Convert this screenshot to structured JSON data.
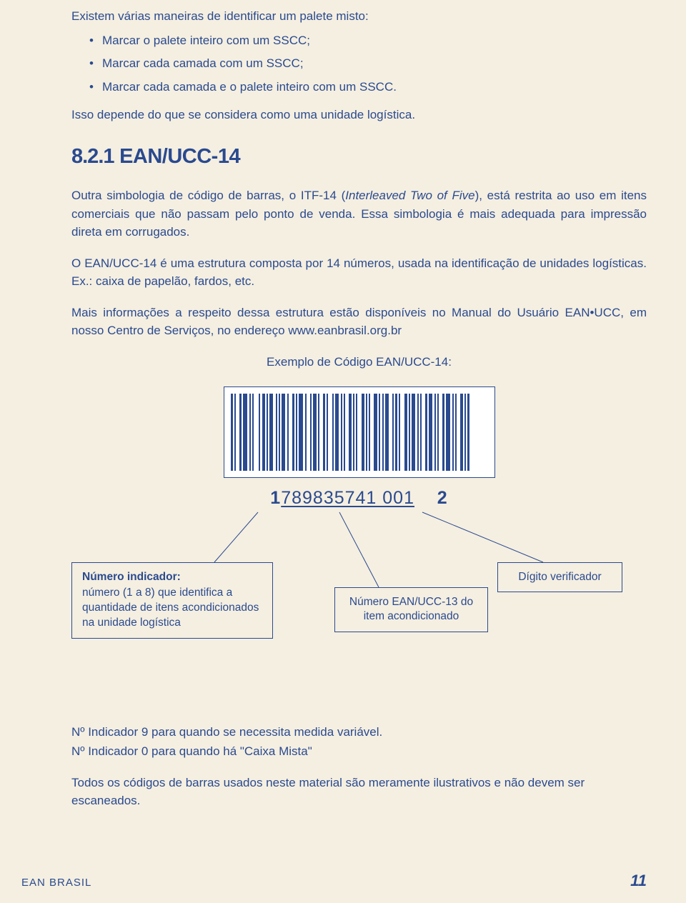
{
  "intro": "Existem várias maneiras de identificar um palete misto:",
  "bullets": [
    "Marcar o palete inteiro com um SSCC;",
    "Marcar cada camada com um SSCC;",
    "Marcar cada camada e o palete inteiro com um SSCC."
  ],
  "depends": "Isso depende do que se considera como uma unidade logística.",
  "section": {
    "num": "8.2.1",
    "title": "EAN/UCC-14"
  },
  "para1_a": "Outra simbologia de código de barras, o ITF-14 (",
  "para1_i": "Interleaved Two of Five",
  "para1_b": "), está restrita ao uso em itens comerciais que não passam pelo ponto de venda. Essa simbologia é mais adequada para impressão direta em corrugados.",
  "para2": "O EAN/UCC-14 é uma estrutura composta por 14 números, usada na identificação de unidades logísticas. Ex.: caixa de papelão, fardos, etc.",
  "para3": "Mais informações a respeito dessa estrutura estão disponíveis no Manual do Usuário EAN•UCC, em nosso Centro de Serviços, no endereço www.eanbrasil.org.br",
  "example_label": "Exemplo de Código EAN/UCC-14:",
  "barcode": {
    "segments": [
      {
        "w": 3,
        "g": 2
      },
      {
        "w": 2,
        "g": 5
      },
      {
        "w": 3,
        "g": 2
      },
      {
        "w": 6,
        "g": 3
      },
      {
        "w": 2,
        "g": 2
      },
      {
        "w": 2,
        "g": 7
      },
      {
        "w": 2,
        "g": 3
      },
      {
        "w": 4,
        "g": 2
      },
      {
        "w": 2,
        "g": 2
      },
      {
        "w": 5,
        "g": 4
      },
      {
        "w": 2,
        "g": 2
      },
      {
        "w": 2,
        "g": 2
      },
      {
        "w": 5,
        "g": 3
      },
      {
        "w": 2,
        "g": 5
      },
      {
        "w": 3,
        "g": 2
      },
      {
        "w": 2,
        "g": 2
      },
      {
        "w": 6,
        "g": 3
      },
      {
        "w": 2,
        "g": 5
      },
      {
        "w": 2,
        "g": 2
      },
      {
        "w": 5,
        "g": 2
      },
      {
        "w": 2,
        "g": 5
      },
      {
        "w": 3,
        "g": 2
      },
      {
        "w": 2,
        "g": 6
      },
      {
        "w": 2,
        "g": 2
      },
      {
        "w": 5,
        "g": 3
      },
      {
        "w": 2,
        "g": 2
      },
      {
        "w": 2,
        "g": 5
      },
      {
        "w": 4,
        "g": 2
      },
      {
        "w": 2,
        "g": 2
      },
      {
        "w": 2,
        "g": 6
      },
      {
        "w": 4,
        "g": 2
      },
      {
        "w": 2,
        "g": 2
      },
      {
        "w": 2,
        "g": 5
      },
      {
        "w": 5,
        "g": 2
      },
      {
        "w": 2,
        "g": 3
      },
      {
        "w": 2,
        "g": 2
      },
      {
        "w": 5,
        "g": 5
      },
      {
        "w": 2,
        "g": 2
      },
      {
        "w": 3,
        "g": 2
      },
      {
        "w": 2,
        "g": 6
      },
      {
        "w": 4,
        "g": 2
      },
      {
        "w": 2,
        "g": 2
      },
      {
        "w": 5,
        "g": 3
      },
      {
        "w": 2,
        "g": 2
      },
      {
        "w": 2,
        "g": 5
      },
      {
        "w": 3,
        "g": 2
      },
      {
        "w": 5,
        "g": 3
      },
      {
        "w": 2,
        "g": 2
      },
      {
        "w": 2,
        "g": 5
      },
      {
        "w": 3,
        "g": 2
      },
      {
        "w": 6,
        "g": 3
      },
      {
        "w": 2,
        "g": 2
      },
      {
        "w": 2,
        "g": 5
      },
      {
        "w": 4,
        "g": 2
      },
      {
        "w": 2,
        "g": 2
      },
      {
        "w": 3,
        "g": 0
      }
    ],
    "bar_color": "#2a4a8f",
    "bg_color": "#ffffff"
  },
  "code": {
    "first": "1",
    "mid": "789835741  001",
    "last": "2"
  },
  "box1": {
    "title": "Número indicador:",
    "body": "número (1 a 8) que identifica a quantidade de itens acondicionados na unidade logística"
  },
  "box2": "Número EAN/UCC-13 do item acondicionado",
  "box3": "Dígito verificador",
  "notes": {
    "n1": "Nº Indicador 9 para quando se necessita medida variável.",
    "n2": "Nº Indicador 0 para quando há \"Caixa Mista\"",
    "n3": "Todos os códigos de barras usados neste material são meramente ilustrativos e não devem ser escaneados."
  },
  "footer": {
    "brand": "EAN BRASIL",
    "page": "11"
  },
  "colors": {
    "text": "#2a4a8f",
    "bg": "#f5efe1"
  }
}
